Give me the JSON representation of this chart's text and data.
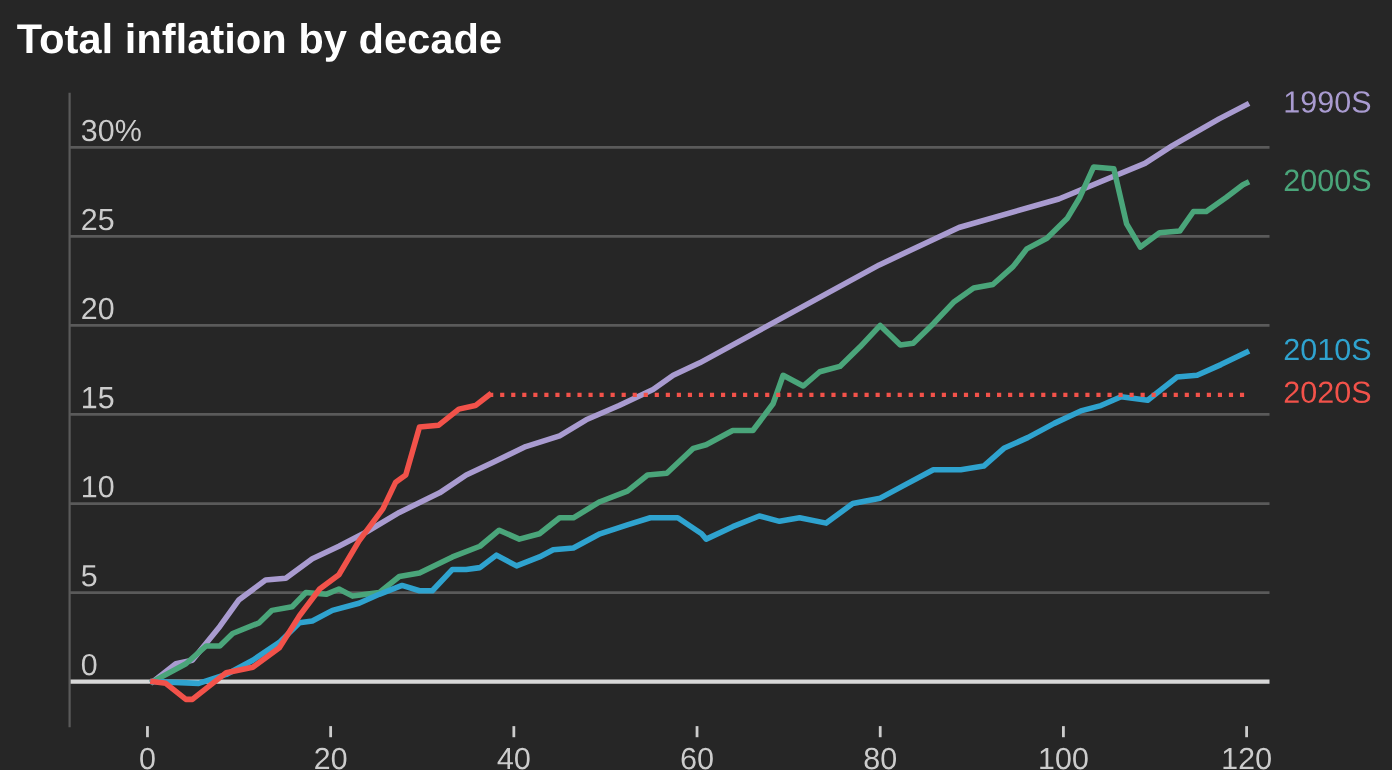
{
  "chart_data": {
    "type": "line",
    "title": "Total inflation by decade",
    "xlim": [
      -8.5,
      122.5
    ],
    "xticks": [
      0,
      20,
      40,
      60,
      80,
      100,
      120
    ],
    "ylim": [
      -2.5,
      33
    ],
    "yticks": [
      0,
      5,
      10,
      15,
      20,
      25,
      {
        "value": 30,
        "label": "30%"
      }
    ],
    "grid": "y",
    "legend": false,
    "marker": "none",
    "line_style": "solid",
    "series": [
      {
        "name": "1990S",
        "color": "#a99bd0",
        "x": [
          0.6,
          3.1,
          4.9,
          7.9,
          10.0,
          12.9,
          15.1,
          18.0,
          20.9,
          23.9,
          27.5,
          31.9,
          34.8,
          37.7,
          41.3,
          45.0,
          47.9,
          51.5,
          55.2,
          57.4,
          60.3,
          79.9,
          88.6,
          99.5,
          108.9,
          111.9,
          117.0,
          120.0
        ],
        "values": [
          0,
          1.0,
          1.2,
          3.1,
          4.6,
          5.7,
          5.8,
          6.9,
          7.6,
          8.4,
          9.5,
          10.6,
          11.6,
          12.3,
          13.2,
          13.8,
          14.7,
          15.5,
          16.4,
          17.2,
          17.9,
          23.4,
          25.5,
          27.1,
          29.1,
          30.1,
          31.6,
          32.4
        ]
      },
      {
        "name": "2000S",
        "color": "#4aa57a",
        "x": [
          0.6,
          4.2,
          6.4,
          7.9,
          9.3,
          12.2,
          13.6,
          15.8,
          17.3,
          19.5,
          20.9,
          22.4,
          25.3,
          27.5,
          29.7,
          33.3,
          36.3,
          38.4,
          40.6,
          42.8,
          45.0,
          46.5,
          49.4,
          52.4,
          54.6,
          56.7,
          59.6,
          61.0,
          63.9,
          66.1,
          68.3,
          69.4,
          71.6,
          73.4,
          75.6,
          77.8,
          80.0,
          82.2,
          83.6,
          85.8,
          88.0,
          90.2,
          92.3,
          94.5,
          96.0,
          98.2,
          100.4,
          101.8,
          103.3,
          105.5,
          106.9,
          108.4,
          110.5,
          112.7,
          114.2,
          115.6,
          117.8,
          119.6,
          120.0
        ],
        "values": [
          0,
          1.0,
          2.0,
          2.0,
          2.7,
          3.3,
          4.0,
          4.2,
          5.0,
          4.9,
          5.2,
          4.8,
          5.0,
          5.9,
          6.1,
          7.0,
          7.6,
          8.5,
          8.0,
          8.3,
          9.2,
          9.2,
          10.1,
          10.7,
          11.6,
          11.7,
          13.1,
          13.3,
          14.1,
          14.1,
          15.6,
          17.2,
          16.6,
          17.4,
          17.7,
          18.8,
          20.0,
          18.9,
          19.0,
          20.1,
          21.3,
          22.1,
          22.3,
          23.3,
          24.3,
          24.9,
          26.0,
          27.2,
          28.9,
          28.8,
          25.7,
          24.4,
          25.2,
          25.3,
          26.4,
          26.4,
          27.2,
          27.9,
          28.0
        ]
      },
      {
        "name": "2010S",
        "color": "#2fa3cf",
        "x": [
          0.6,
          5.6,
          8.6,
          11.5,
          14.4,
          16.6,
          18.0,
          20.2,
          23.1,
          25.3,
          27.8,
          29.7,
          31.1,
          33.3,
          34.8,
          36.3,
          38.1,
          40.3,
          42.8,
          44.3,
          46.5,
          49.4,
          52.4,
          54.9,
          57.9,
          60.5,
          61.0,
          63.9,
          66.8,
          69.0,
          71.2,
          74.1,
          77.0,
          80.0,
          82.9,
          85.8,
          88.8,
          91.3,
          93.5,
          96.1,
          99.0,
          101.9,
          104.1,
          106.3,
          109.2,
          112.4,
          114.6,
          117.2,
          120.0
        ],
        "values": [
          0,
          -0.1,
          0.4,
          1.2,
          2.2,
          3.3,
          3.4,
          4.0,
          4.4,
          4.9,
          5.4,
          5.1,
          5.1,
          6.3,
          6.3,
          6.4,
          7.1,
          6.5,
          7.0,
          7.4,
          7.5,
          8.3,
          8.8,
          9.2,
          9.2,
          8.3,
          8.0,
          8.7,
          9.3,
          9.0,
          9.2,
          8.9,
          10.0,
          10.3,
          11.1,
          11.9,
          11.9,
          12.1,
          13.1,
          13.7,
          14.5,
          15.2,
          15.5,
          16.0,
          15.8,
          17.1,
          17.2,
          17.8,
          18.5
        ]
      },
      {
        "color": "#f2524a",
        "x": [
          0.6,
          2.0,
          4.2,
          4.9,
          8.6,
          11.5,
          14.4,
          16.6,
          18.8,
          20.9,
          23.1,
          25.7,
          27.1,
          28.2,
          29.7,
          31.8,
          34.0,
          35.8,
          37.3
        ],
        "values": [
          0,
          -0.1,
          -1.0,
          -1.0,
          0.5,
          0.8,
          1.9,
          3.7,
          5.2,
          6.0,
          7.9,
          9.7,
          11.2,
          11.6,
          14.3,
          14.4,
          15.3,
          15.5,
          16.1
        ]
      }
    ],
    "ref_lines": [
      {
        "axis": "y",
        "value": 16.1,
        "label": "2020S",
        "color": "#f2524a",
        "line_style": "dotted"
      }
    ]
  }
}
